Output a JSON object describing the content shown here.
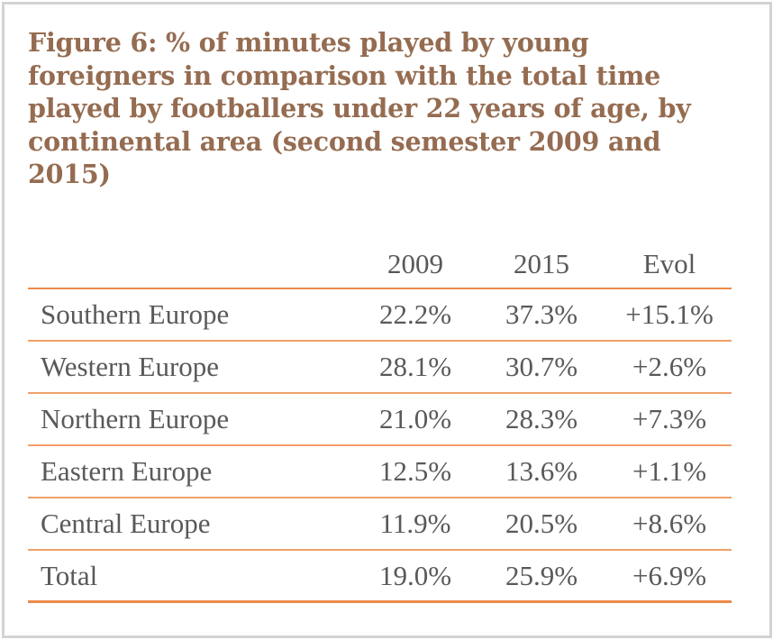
{
  "title": "Figure 6: % of minutes played by young foreigners in comparison with the total time played by footballers under 22 years of age, by continental area (second semester 2009 and 2015)",
  "table": {
    "headers": [
      "",
      "2009",
      "2015",
      "Evol"
    ],
    "rows": [
      {
        "label": "Southern Europe",
        "v2009": "22.2%",
        "v2015": "37.3%",
        "evol": "+15.1%"
      },
      {
        "label": "Western Europe",
        "v2009": "28.1%",
        "v2015": "30.7%",
        "evol": "+2.6%"
      },
      {
        "label": "Northern Europe",
        "v2009": "21.0%",
        "v2015": "28.3%",
        "evol": "+7.3%"
      },
      {
        "label": "Eastern Europe",
        "v2009": "12.5%",
        "v2015": "13.6%",
        "evol": "+1.1%"
      },
      {
        "label": "Central Europe",
        "v2009": "11.9%",
        "v2015": "20.5%",
        "evol": "+8.6%"
      },
      {
        "label": "Total",
        "v2009": "19.0%",
        "v2015": "25.9%",
        "evol": "+6.9%"
      }
    ]
  },
  "colors": {
    "title": "#956c51",
    "text": "#595959",
    "rule": "#ec8a49",
    "border": "#d3d3d3"
  },
  "chart_data": {
    "type": "table",
    "title": "Figure 6: % of minutes played by young foreigners in comparison with the total time played by footballers under 22 years of age, by continental area (second semester 2009 and 2015)",
    "columns": [
      "",
      "2009",
      "2015",
      "Evol"
    ],
    "categories": [
      "Southern Europe",
      "Western Europe",
      "Northern Europe",
      "Eastern Europe",
      "Central Europe",
      "Total"
    ],
    "series": [
      {
        "name": "2009",
        "values": [
          22.2,
          28.1,
          21.0,
          12.5,
          11.9,
          19.0
        ]
      },
      {
        "name": "2015",
        "values": [
          37.3,
          30.7,
          28.3,
          13.6,
          20.5,
          25.9
        ]
      },
      {
        "name": "Evol",
        "values": [
          15.1,
          2.6,
          7.3,
          1.1,
          8.6,
          6.9
        ]
      }
    ],
    "unit": "%"
  }
}
